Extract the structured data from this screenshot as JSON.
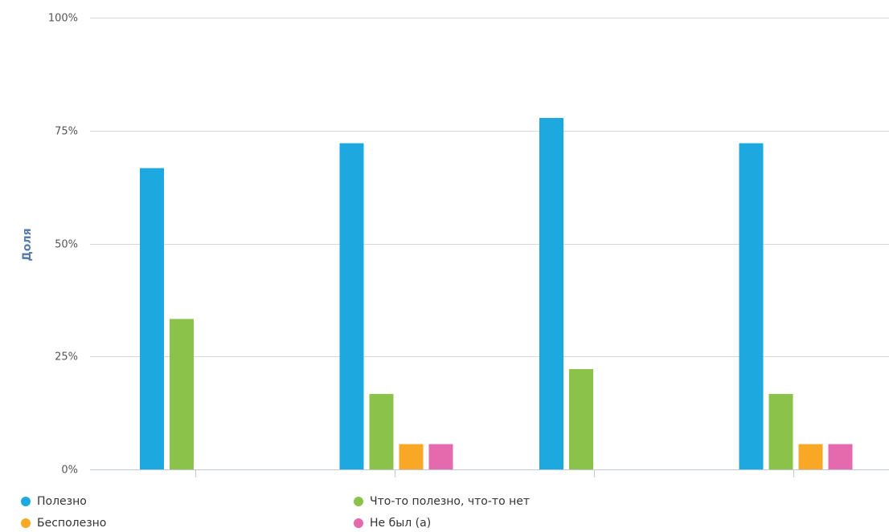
{
  "chart_data": {
    "type": "bar",
    "title": "",
    "xlabel": "",
    "ylabel": "Доля",
    "ylim": [
      0,
      100
    ],
    "yticks": [
      "0%",
      "25%",
      "50%",
      "75%",
      "100%"
    ],
    "grid": true,
    "legend_position": "bottom",
    "categories": [
      "",
      "",
      "",
      ""
    ],
    "series": [
      {
        "name": "Полезно",
        "color": "#1ea8e0",
        "values": [
          66.7,
          72.2,
          77.8,
          72.2
        ]
      },
      {
        "name": "Что-то полезно, что-то нет",
        "color": "#8bc34a",
        "values": [
          33.3,
          16.7,
          22.2,
          16.7
        ]
      },
      {
        "name": "Бесполезно",
        "color": "#f9a825",
        "values": [
          0,
          5.6,
          0,
          5.6
        ]
      },
      {
        "name": "Не был (а)",
        "color": "#e56aad",
        "values": [
          0,
          5.6,
          0,
          5.6
        ]
      }
    ]
  }
}
